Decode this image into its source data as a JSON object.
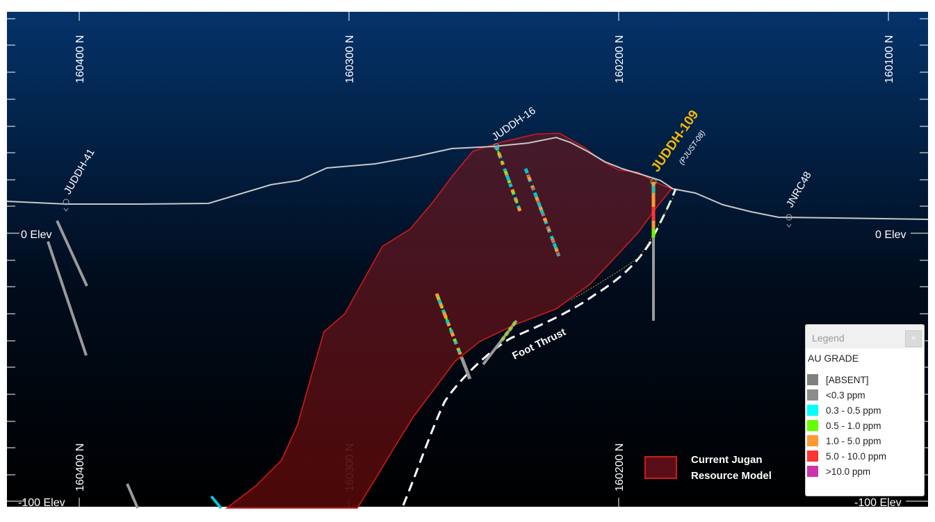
{
  "section": {
    "northing_labels": [
      "160400 N",
      "160300 N",
      "160200 N",
      "160100 N"
    ],
    "elevation_labels": {
      "zero": "0 Elev",
      "minus100": "-100 Elev"
    }
  },
  "drillholes": [
    "JUDDH-41",
    "JUDDH-16",
    "JUDDH-109",
    "JNRC48"
  ],
  "highlighted_hole_alias": "(PJUST-08)",
  "structure_label": "Foot Thrust",
  "resource_model": {
    "label_line1": "Current Jugan",
    "label_line2": "Resource Model",
    "color": "#5a0f18"
  },
  "legend": {
    "title": "Legend",
    "close_symbol": "×",
    "subtitle": "AU GRADE",
    "items": [
      {
        "label": "[ABSENT]",
        "color": "#808080"
      },
      {
        "label": "<0.3 ppm",
        "color": "#8c8c8c"
      },
      {
        "label": "0.3 - 0.5 ppm",
        "color": "#00ffff"
      },
      {
        "label": "0.5 - 1.0 ppm",
        "color": "#66ff00"
      },
      {
        "label": "1.0 - 5.0 ppm",
        "color": "#ff9933"
      },
      {
        "label": "5.0 - 10.0 ppm",
        "color": "#ff3333"
      },
      {
        "label": ">10.0 ppm",
        "color": "#cc33aa"
      }
    ]
  },
  "colors": {
    "background_top": "#04336a",
    "background_bottom": "#000000",
    "highlight_label": "#f5b800",
    "topography": "#c8c8c8"
  }
}
